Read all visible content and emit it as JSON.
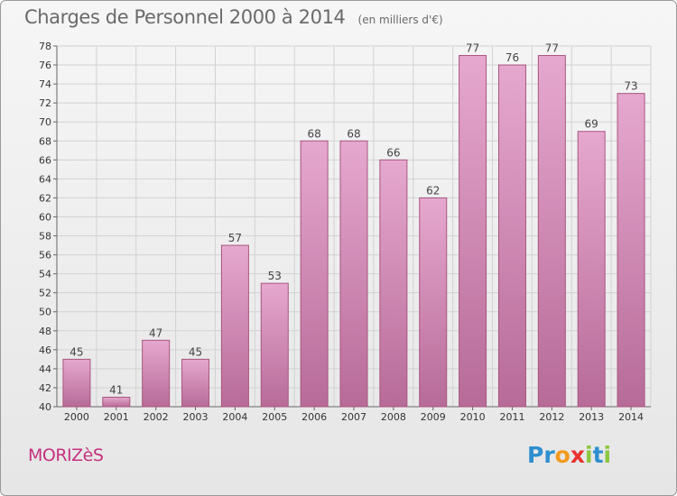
{
  "header": {
    "title": "Charges de Personnel 2000 à 2014",
    "subtitle": "(en milliers d'€)"
  },
  "footer": {
    "commune": "MORIZèS",
    "logo_letters": [
      {
        "ch": "P",
        "color": "#2e8fd0"
      },
      {
        "ch": "r",
        "color": "#2e8fd0"
      },
      {
        "ch": "o",
        "color": "#f29a1f"
      },
      {
        "ch": "x",
        "color": "#e8312f"
      },
      {
        "ch": "i",
        "color": "#8cc63e"
      },
      {
        "ch": "t",
        "color": "#2e8fd0"
      },
      {
        "ch": "i",
        "color": "#8cc63e"
      }
    ]
  },
  "colors": {
    "bar_top": "#e6a8cf",
    "bar_bottom": "#b76b98",
    "bar_stroke": "#a8557f",
    "grid": "#d2d2d2"
  },
  "chart_data": {
    "type": "bar",
    "title": "Charges de Personnel 2000 à 2014",
    "subtitle": "(en milliers d'€)",
    "xlabel": "",
    "ylabel": "",
    "categories": [
      "2000",
      "2001",
      "2002",
      "2003",
      "2004",
      "2005",
      "2006",
      "2007",
      "2008",
      "2009",
      "2010",
      "2011",
      "2012",
      "2013",
      "2014"
    ],
    "values": [
      45,
      41,
      47,
      45,
      57,
      53,
      68,
      68,
      66,
      62,
      77,
      76,
      77,
      69,
      73
    ],
    "ylim": [
      40,
      78
    ],
    "yticks": [
      40,
      42,
      44,
      46,
      48,
      50,
      52,
      54,
      56,
      58,
      60,
      62,
      64,
      66,
      68,
      70,
      72,
      74,
      76,
      78
    ],
    "grid": true,
    "data_labels": true
  }
}
